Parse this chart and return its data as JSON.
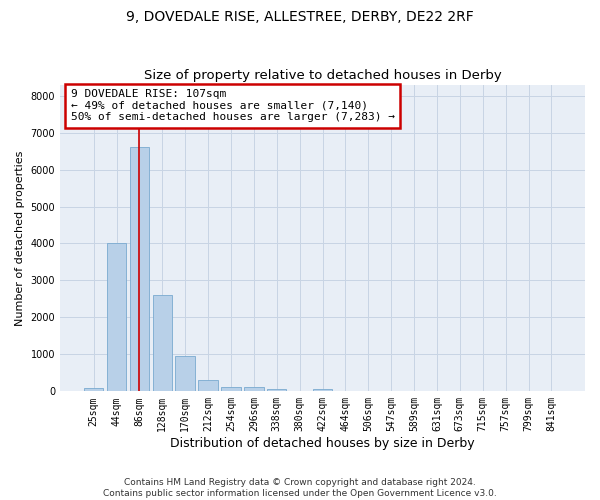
{
  "title1": "9, DOVEDALE RISE, ALLESTREE, DERBY, DE22 2RF",
  "title2": "Size of property relative to detached houses in Derby",
  "xlabel": "Distribution of detached houses by size in Derby",
  "ylabel": "Number of detached properties",
  "categories": [
    "25sqm",
    "44sqm",
    "86sqm",
    "128sqm",
    "170sqm",
    "212sqm",
    "254sqm",
    "296sqm",
    "338sqm",
    "380sqm",
    "422sqm",
    "464sqm",
    "506sqm",
    "547sqm",
    "589sqm",
    "631sqm",
    "673sqm",
    "715sqm",
    "757sqm",
    "799sqm",
    "841sqm"
  ],
  "bar_heights": [
    80,
    4000,
    6600,
    2600,
    950,
    320,
    130,
    110,
    60,
    0,
    60,
    0,
    0,
    0,
    0,
    0,
    0,
    0,
    0,
    0,
    0
  ],
  "bar_color": "#b8d0e8",
  "bar_edge_color": "#7aaad0",
  "vline_x": 2,
  "vline_color": "#cc0000",
  "annotation_line1": "9 DOVEDALE RISE: 107sqm",
  "annotation_line2": "← 49% of detached houses are smaller (7,140)",
  "annotation_line3": "50% of semi-detached houses are larger (7,283) →",
  "annotation_box_color": "#cc0000",
  "annotation_box_facecolor": "white",
  "ylim": [
    0,
    8300
  ],
  "yticks": [
    0,
    1000,
    2000,
    3000,
    4000,
    5000,
    6000,
    7000,
    8000
  ],
  "grid_color": "#c8d4e4",
  "bg_color": "#e8eef6",
  "footnote": "Contains HM Land Registry data © Crown copyright and database right 2024.\nContains public sector information licensed under the Open Government Licence v3.0.",
  "title1_fontsize": 10,
  "title2_fontsize": 9.5,
  "xlabel_fontsize": 9,
  "ylabel_fontsize": 8,
  "tick_fontsize": 7,
  "annot_fontsize": 8,
  "footnote_fontsize": 6.5
}
